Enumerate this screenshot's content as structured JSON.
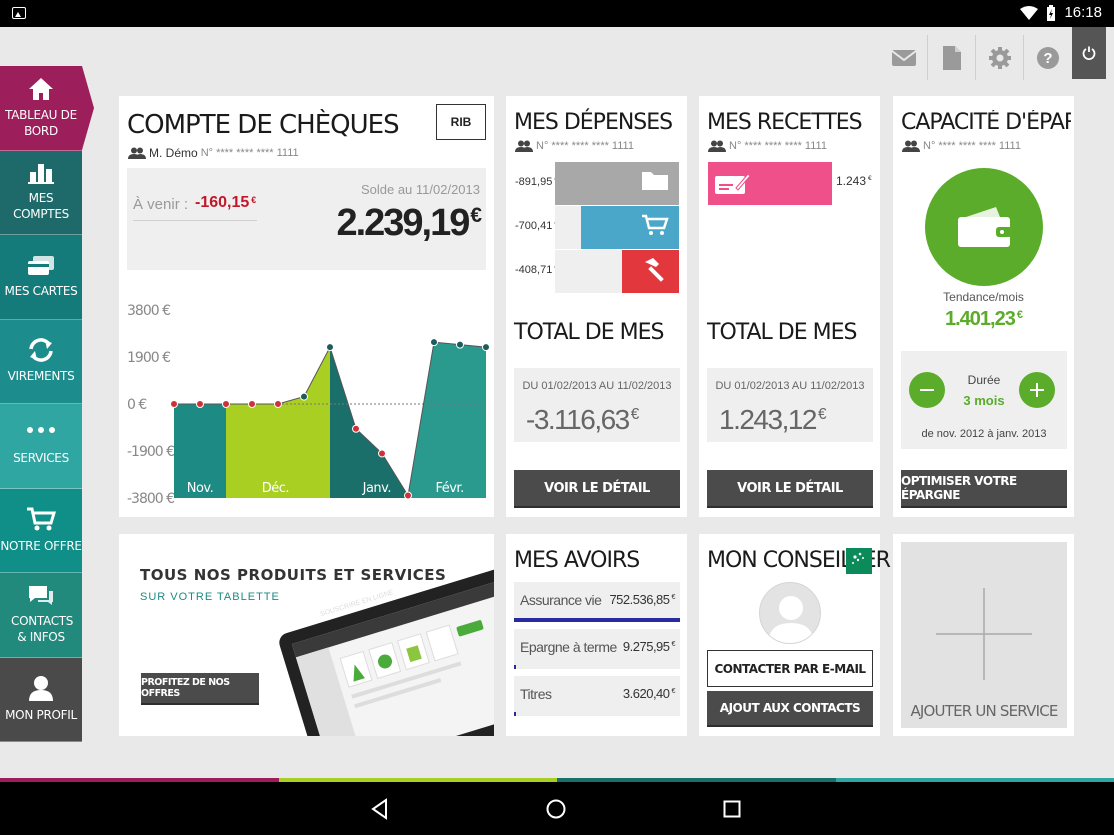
{
  "status_bar": {
    "time": "16:18"
  },
  "sidebar": [
    {
      "label": "Tableau de bord",
      "icon": "home-icon",
      "color": "#9c1e5b"
    },
    {
      "label": "Mes comptes",
      "icon": "bar-chart-icon",
      "color": "#1e6a6a"
    },
    {
      "label": "Mes cartes",
      "icon": "card-icon",
      "color": "#147a7a"
    },
    {
      "label": "Virements",
      "icon": "transfer-icon",
      "color": "#1d8c8c"
    },
    {
      "label": "Services",
      "icon": "more-icon",
      "color": "#30a6a2"
    },
    {
      "label": "Notre offre",
      "icon": "cart-icon",
      "color": "#0f8f87"
    },
    {
      "label": "Contacts & infos",
      "icon": "chat-icon",
      "color": "#22897d"
    },
    {
      "label": "Mon profil",
      "icon": "user-icon",
      "color": "#4a4a4a"
    }
  ],
  "compte": {
    "title": "Compte de chèques",
    "rib": "RIB",
    "owner": "M. Démo",
    "account": "N° **** **** **** 1111",
    "avenir_label": "À venir :",
    "avenir_value": "-160,15",
    "solde_label": "Solde au 11/02/2013",
    "solde_value": "2.239,19",
    "currency": "€"
  },
  "chart_data": {
    "type": "area",
    "ylim": [
      -3800,
      3800
    ],
    "y_ticks": [
      "3800 €",
      "1900 €",
      "0 €",
      "-1900 €",
      "-3800 €"
    ],
    "month_labels": [
      "Nov.",
      "Déc.",
      "Janv.",
      "Févr."
    ],
    "x": [
      0,
      1,
      2,
      3,
      4,
      5,
      6,
      7,
      8,
      9,
      10,
      11,
      12
    ],
    "values": [
      0,
      0,
      0,
      0,
      0,
      300,
      2300,
      -1000,
      -2000,
      -3700,
      2500,
      2400,
      2300
    ],
    "colors": {
      "nov": "#1d8a83",
      "dec": "#a9cf22",
      "janv": "#1a6f6a",
      "fevr": "#2a9a8f",
      "dot_neg": "#d0303a",
      "dot_pos": "#1d5c5a"
    }
  },
  "depenses": {
    "title": "Mes dépenses",
    "account": "N° **** **** **** 1111",
    "rows": [
      {
        "value": "-891,95",
        "color": "#a8a8a8",
        "icon": "folder-icon",
        "pct": 1.0
      },
      {
        "value": "-700,41",
        "color": "#4aa7c9",
        "icon": "cart-icon",
        "pct": 0.79
      },
      {
        "value": "-408,71",
        "color": "#e2383d",
        "icon": "hammer-icon",
        "pct": 0.46
      }
    ],
    "total_label": "Total de mes",
    "period": "DU 01/02/2013 AU 11/02/2013",
    "total": "-3.116,63",
    "button": "Voir le détail"
  },
  "recettes": {
    "title": "Mes recettes",
    "account": "N° **** **** **** 1111",
    "rows": [
      {
        "value": "1.243",
        "color": "#f0508a",
        "icon": "cheque-icon"
      }
    ],
    "total_label": "Total de mes",
    "period": "DU 01/02/2013 AU 11/02/2013",
    "total": "1.243,12",
    "button": "Voir le détail"
  },
  "epargne": {
    "title": "Capacité d'épargn...",
    "account": "N° **** **** **** 1111",
    "tendance_label": "Tendance/mois",
    "tendance_value": "1.401,23",
    "duree_label": "Durée",
    "duree_value": "3 mois",
    "range": "de nov. 2012 à janv. 2013",
    "button": "Optimiser votre épargne",
    "accent": "#5aac2a"
  },
  "promo": {
    "title": "Tous nos produits et services",
    "subtitle": "Sur votre tablette",
    "button": "Profitez de nos offres",
    "tablet_header": "SOUSCRIRE EN LIGNE"
  },
  "avoirs": {
    "title": "Mes avoirs",
    "rows": [
      {
        "label": "Assurance vie",
        "value": "752.536,85",
        "bar_color": "#2a2aa0",
        "fill": 1.0
      },
      {
        "label": "Epargne à terme",
        "value": "9.275,95",
        "bar_color": "#2a2aa0",
        "fill": 0.012
      },
      {
        "label": "Titres",
        "value": "3.620,40",
        "bar_color": "#2a2aa0",
        "fill": 0.005
      }
    ]
  },
  "conseiller": {
    "title": "Mon conseiller",
    "btn_email": "Contacter par e-mail",
    "btn_contacts": "Ajout aux contacts"
  },
  "add_service": {
    "label": "Ajouter un service"
  }
}
